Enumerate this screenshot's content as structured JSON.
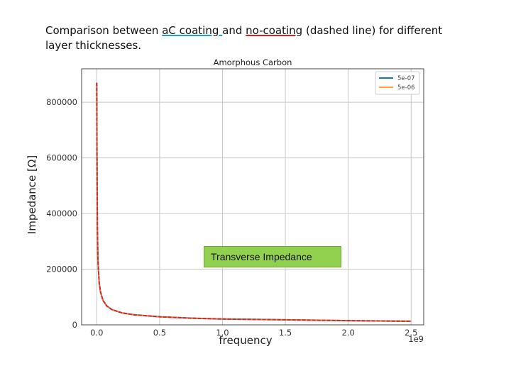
{
  "caption": {
    "before": "Comparison between ",
    "link1": "aC coating ",
    "middle": "and ",
    "link2": "no-coating",
    "after": " (dashed line) for different layer thicknesses."
  },
  "annotation": "Transverse Impedance",
  "colors": {
    "series1": "#1f77b4",
    "series2": "#ff7f0e",
    "no_coating": "#d62728",
    "annotation_bg": "#92d050"
  },
  "chart_data": {
    "type": "line",
    "title": "Amorphous Carbon",
    "xlabel": "frequency",
    "ylabel": "Impedance [Ω]",
    "x_offset_label": "1e9",
    "xlim": [
      -0.12,
      2.6
    ],
    "ylim": [
      0,
      920000
    ],
    "x_ticks": [
      0.0,
      0.5,
      1.0,
      1.5,
      2.0,
      2.5
    ],
    "x_tick_labels": [
      "0.0",
      "0.5",
      "1.0",
      "1.5",
      "2.0",
      "2.5"
    ],
    "y_ticks": [
      0,
      200000,
      400000,
      600000,
      800000
    ],
    "y_tick_labels": [
      "0",
      "200000",
      "400000",
      "600000",
      "800000"
    ],
    "grid": true,
    "legend_position": "top-right",
    "x": [
      0.0,
      0.002,
      0.005,
      0.01,
      0.02,
      0.03,
      0.05,
      0.08,
      0.12,
      0.2,
      0.3,
      0.5,
      0.75,
      1.0,
      1.5,
      2.0,
      2.5
    ],
    "series": [
      {
        "name": "5e-07",
        "style": "solid",
        "values": [
          870000,
          620000,
          350000,
          230000,
          150000,
          118000,
          88000,
          68000,
          55000,
          43000,
          36000,
          29000,
          24000,
          21000,
          18000,
          15000,
          13000
        ]
      },
      {
        "name": "5e-06",
        "style": "solid",
        "values": [
          870000,
          620000,
          350000,
          230000,
          150000,
          118000,
          88000,
          68000,
          55000,
          43000,
          36000,
          29000,
          24000,
          21000,
          18000,
          15000,
          13000
        ]
      },
      {
        "style": "dashed",
        "values": [
          870000,
          620000,
          350000,
          230000,
          150000,
          118000,
          88000,
          68000,
          55000,
          43000,
          36000,
          29000,
          24000,
          21000,
          18000,
          15000,
          13000
        ]
      }
    ]
  }
}
